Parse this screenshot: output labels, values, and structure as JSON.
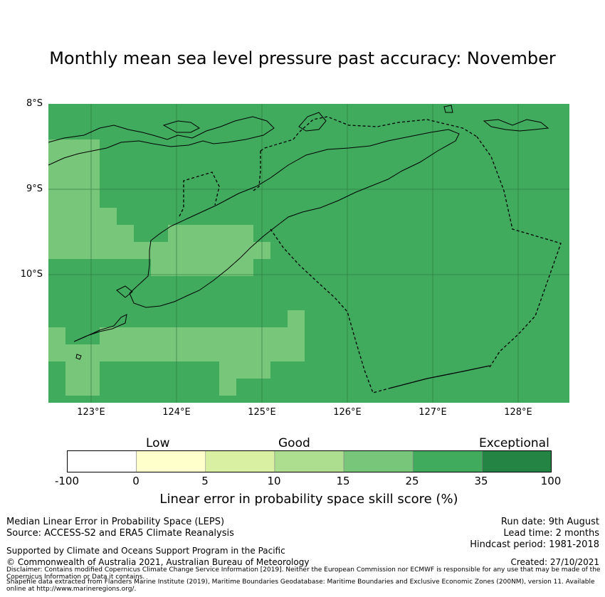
{
  "title": "Monthly mean sea level pressure past accuracy: November",
  "map": {
    "lat_labels": [
      "8°S",
      "9°S",
      "10°S"
    ],
    "lon_labels": [
      "123°E",
      "124°E",
      "125°E",
      "126°E",
      "127°E",
      "128°E"
    ],
    "colors": {
      "score_25_35": "#78c679",
      "score_35_100": "#41ab5d",
      "gridline": "#2e7d45",
      "coastline": "#000000",
      "eez_boundary": "#000000"
    },
    "extent": {
      "lon": [
        122.5,
        128.6
      ],
      "lat": [
        -11.5,
        -8.0
      ]
    }
  },
  "colorbar": {
    "categories": [
      "Low",
      "Good",
      "Exceptional"
    ],
    "ticks": [
      "-100",
      "0",
      "5",
      "10",
      "15",
      "25",
      "35",
      "100"
    ],
    "colors": [
      "#ffffff",
      "#ffffcc",
      "#d9f0a3",
      "#addd8e",
      "#78c679",
      "#41ab5d",
      "#238443"
    ],
    "label": "Linear error in probability space skill score (%)"
  },
  "footer": {
    "left_line1": "Median Linear Error in Probability Space (LEPS)",
    "left_line2": "Source: ACCESS-S2 and ERA5 Climate Reanalysis",
    "supported": "Supported by Climate and Oceans Support Program in the Pacific",
    "copyright": "© Commonwealth of Australia 2021, Australian Bureau of Meteorology",
    "run_date": "Run date: 9th August",
    "lead_time": "Lead time: 2 months",
    "hindcast": "Hindcast period: 1981-2018",
    "created": "Created: 27/10/2021",
    "disclaimer1": "Disclaimer: Contains modified Copernicus Climate Change Service Information [2019]. Neither the European Commission nor ECMWF is responsible for any use that may be made of the Copernicus Information or Data it contains.",
    "disclaimer2": "Shapefile data extracted from Flanders Marine Institute (2019), Maritime Boundaries Geodatabase: Maritime Boundaries and Exclusive Economic Zones (200NM), version 11. Available online at http://www.marineregions.org/."
  }
}
